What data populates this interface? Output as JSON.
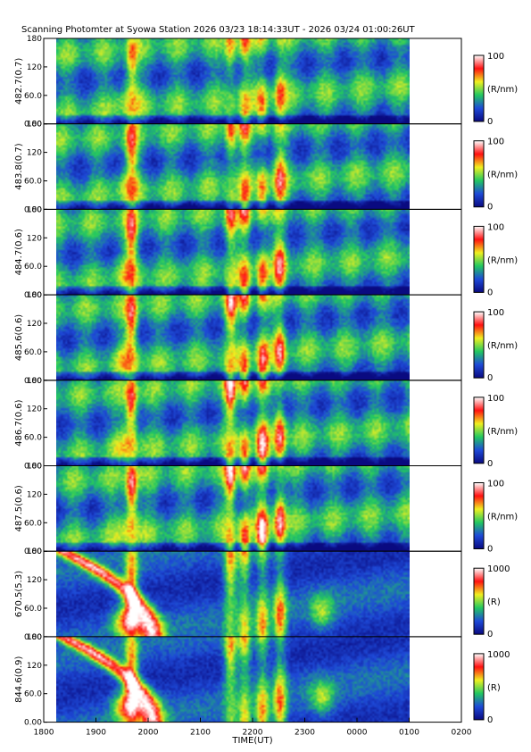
{
  "title": "Scanning Photomter at Syowa Station  2026 03/23 18:14:33UT - 2026 03/24 01:00:26UT",
  "chart_data": {
    "type": "heatmap",
    "title": "Scanning Photomter at Syowa Station  2026 03/23 18:14:33UT - 2026 03/24 01:00:26UT",
    "xlabel": "TIME(UT)",
    "x_ticks": [
      "1800",
      "1900",
      "2000",
      "2100",
      "2200",
      "2300",
      "0000",
      "0100",
      "0200"
    ],
    "data_start_ut": "18:14:33",
    "data_end_ut": "01:00:26",
    "ylim": [
      0,
      180
    ],
    "y_ticks": [
      "0.00",
      "60.0",
      "120",
      "180"
    ],
    "colormap": [
      "#0a0a80",
      "#1e4ad8",
      "#22c860",
      "#f0f020",
      "#ff1010",
      "#ffffff"
    ],
    "panels": [
      {
        "ylabel": "482.7(0.7)",
        "cbar_unit": "(R/nm)",
        "cbar_min": "0",
        "cbar_max": "100"
      },
      {
        "ylabel": "483.8(0.7)",
        "cbar_unit": "(R/nm)",
        "cbar_min": "0",
        "cbar_max": "100"
      },
      {
        "ylabel": "484.7(0.6)",
        "cbar_unit": "(R/nm)",
        "cbar_min": "0",
        "cbar_max": "100"
      },
      {
        "ylabel": "485.6(0.6)",
        "cbar_unit": "(R/nm)",
        "cbar_min": "0",
        "cbar_max": "100"
      },
      {
        "ylabel": "486.7(0.6)",
        "cbar_unit": "(R/nm)",
        "cbar_min": "0",
        "cbar_max": "100"
      },
      {
        "ylabel": "487.5(0.6)",
        "cbar_unit": "(R/nm)",
        "cbar_min": "0",
        "cbar_max": "100"
      },
      {
        "ylabel": "670.5(5.3)",
        "cbar_unit": "(R)",
        "cbar_min": "0",
        "cbar_max": "1000"
      },
      {
        "ylabel": "844.6(0.9)",
        "cbar_unit": "(R)",
        "cbar_min": "0",
        "cbar_max": "1000"
      }
    ]
  }
}
